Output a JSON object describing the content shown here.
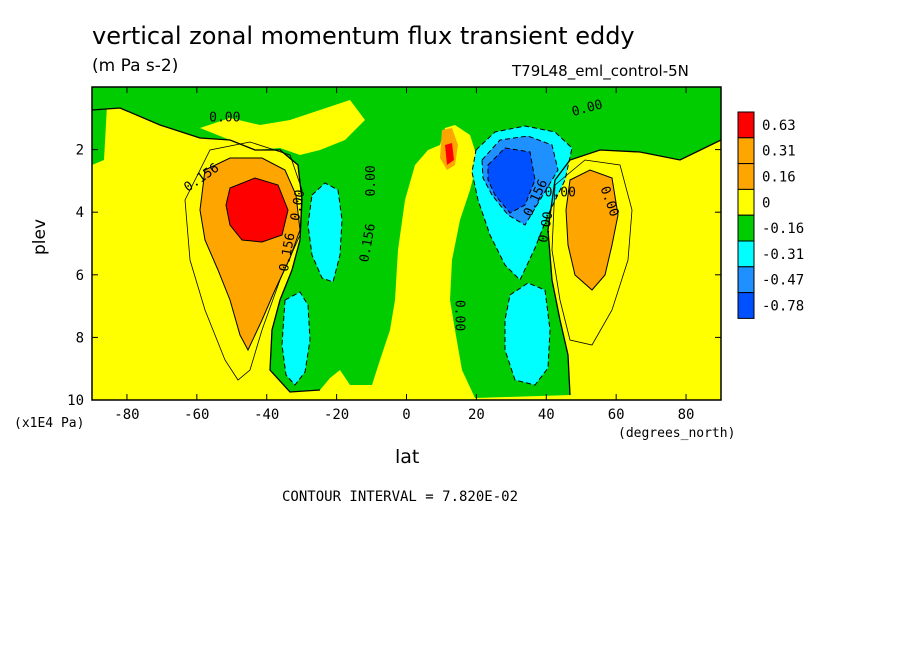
{
  "header": {
    "title": "vertical zonal momentum flux transient eddy",
    "units": "(m Pa s-2)",
    "run_id": "T79L48_eml_control-5N",
    "contour_interval": "CONTOUR INTERVAL = 7.820E-02"
  },
  "axes": {
    "xlabel": "lat",
    "ylabel": "plev",
    "x_units": "(degrees_north)",
    "y_units": "(x1E4 Pa)"
  },
  "chart_data": {
    "type": "heatmap",
    "xlim": [
      -90,
      90
    ],
    "ylim": [
      10,
      0
    ],
    "xticks": [
      -80,
      -60,
      -40,
      -20,
      0,
      20,
      40,
      60,
      80
    ],
    "yticks": [
      2,
      4,
      6,
      8,
      10
    ],
    "legend": {
      "placement": "right",
      "levels": [
        "0.63",
        "0.31",
        "0.16",
        "0",
        "-0.16",
        "-0.31",
        "-0.47",
        "-0.78"
      ],
      "colors": [
        "#ff0000",
        "#ffa500",
        "#ffa500",
        "#ffff00",
        "#00cc00",
        "#00ffff",
        "#1e90ff",
        "#0050ff"
      ]
    },
    "colors": {
      "c_0_016": "#ffff00",
      "c_016_031": "#ffa500",
      "c_031_plus": "#ff0000",
      "c_m016_0": "#00cc00",
      "c_m031_m016": "#00ffff",
      "c_m047_m031": "#1e90ff",
      "c_minus_max": "#0050ff"
    },
    "contour_labels": [
      "0.00",
      "0.156",
      "0.156",
      "0.156",
      "0.156",
      "0.00",
      "0.00",
      "0.00",
      "0.00",
      "0.00",
      "0.00",
      "0.00"
    ],
    "features": [
      {
        "name": "sh-positive-max",
        "lat": -45,
        "plev": 4.0,
        "value": 0.63
      },
      {
        "name": "sh-negative-min",
        "lat": -27,
        "plev": 5.0,
        "value": -0.31
      },
      {
        "name": "sh-negative-low",
        "lat": -32,
        "plev": 8.2,
        "value": -0.31
      },
      {
        "name": "nh-negative-min",
        "lat": 30,
        "plev": 3.2,
        "value": -0.78
      },
      {
        "name": "nh-negative-low",
        "lat": 36,
        "plev": 8.3,
        "value": -0.31
      },
      {
        "name": "nh-positive-max",
        "lat": 55,
        "plev": 4.0,
        "value": 0.31
      },
      {
        "name": "equatorial-positive",
        "lat": 12,
        "plev": 2.5,
        "value": 0.31
      }
    ]
  }
}
